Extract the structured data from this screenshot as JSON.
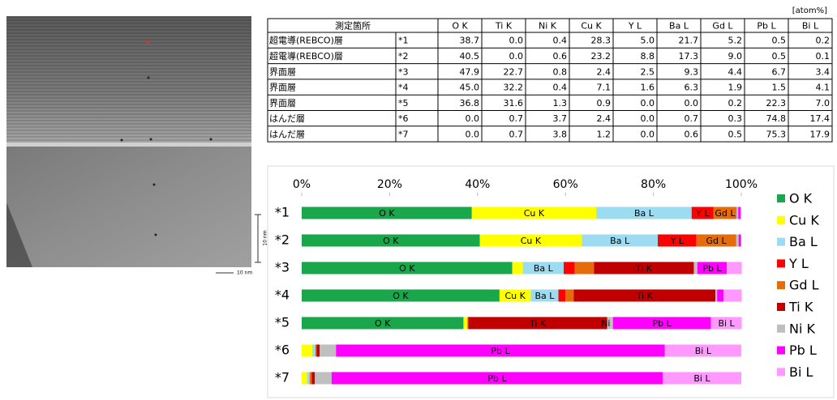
{
  "image": {
    "scale_labels": [
      "10 nm",
      "10 nm"
    ]
  },
  "table": {
    "unit": "[atom%]",
    "columns": [
      "測定箇所",
      "O K",
      "Ti K",
      "Ni K",
      "Cu K",
      "Y L",
      "Ba L",
      "Gd L",
      "Pb L",
      "Bi L"
    ],
    "rows": [
      [
        "超電導(REBCO)層",
        "*1",
        "38.7",
        "0.0",
        "0.4",
        "28.3",
        "5.0",
        "21.7",
        "5.2",
        "0.5",
        "0.2"
      ],
      [
        "超電導(REBCO)層",
        "*2",
        "40.5",
        "0.0",
        "0.6",
        "23.2",
        "8.8",
        "17.3",
        "9.0",
        "0.5",
        "0.1"
      ],
      [
        "界面層",
        "*3",
        "47.9",
        "22.7",
        "0.8",
        "2.4",
        "2.5",
        "9.3",
        "4.4",
        "6.7",
        "3.4"
      ],
      [
        "界面層",
        "*4",
        "45.0",
        "32.2",
        "0.4",
        "7.1",
        "1.6",
        "6.3",
        "1.9",
        "1.5",
        "4.1"
      ],
      [
        "界面層",
        "*5",
        "36.8",
        "31.6",
        "1.3",
        "0.9",
        "0.0",
        "0.0",
        "0.2",
        "22.3",
        "7.0"
      ],
      [
        "はんだ層",
        "*6",
        "0.0",
        "0.7",
        "3.7",
        "2.4",
        "0.0",
        "0.7",
        "0.3",
        "74.8",
        "17.4"
      ],
      [
        "はんだ層",
        "*7",
        "0.0",
        "0.7",
        "3.8",
        "1.2",
        "0.0",
        "0.6",
        "0.5",
        "75.3",
        "17.9"
      ]
    ]
  },
  "chart_data": {
    "type": "stacked-barh",
    "categories": [
      "*1",
      "*2",
      "*3",
      "*4",
      "*5",
      "*6",
      "*7"
    ],
    "xlim": [
      0,
      100
    ],
    "xticks": [
      {
        "value": 0,
        "label": "0%"
      },
      {
        "value": 20,
        "label": "20%"
      },
      {
        "value": 40,
        "label": "40%"
      },
      {
        "value": 60,
        "label": "60%"
      },
      {
        "value": 80,
        "label": "80%"
      },
      {
        "value": 100,
        "label": "100%"
      }
    ],
    "legend": "right",
    "series": [
      {
        "name": "O K",
        "color": "#1aa64a",
        "values": [
          38.7,
          40.5,
          47.9,
          45.0,
          36.8,
          0.0,
          0.0
        ]
      },
      {
        "name": "Cu K",
        "color": "#ffff00",
        "values": [
          28.3,
          23.2,
          2.4,
          7.1,
          0.9,
          2.4,
          1.2
        ]
      },
      {
        "name": "Ba L",
        "color": "#9ddcf0",
        "values": [
          21.7,
          17.3,
          9.3,
          6.3,
          0.0,
          0.7,
          0.6
        ]
      },
      {
        "name": "Y L",
        "color": "#ff0000",
        "values": [
          5.0,
          8.8,
          2.5,
          1.6,
          0.0,
          0.0,
          0.0
        ]
      },
      {
        "name": "Gd L",
        "color": "#e46c0a",
        "values": [
          5.2,
          9.0,
          4.4,
          1.9,
          0.2,
          0.3,
          0.5
        ]
      },
      {
        "name": "Ti K",
        "color": "#c00000",
        "values": [
          0.0,
          0.0,
          22.7,
          32.2,
          31.6,
          0.7,
          0.7
        ]
      },
      {
        "name": "Ni K",
        "color": "#bfbfbf",
        "values": [
          0.4,
          0.6,
          0.8,
          0.4,
          1.3,
          3.7,
          3.8
        ]
      },
      {
        "name": "Pb L",
        "color": "#ff00ff",
        "values": [
          0.5,
          0.5,
          6.7,
          1.5,
          22.3,
          74.8,
          75.3
        ]
      },
      {
        "name": "Bi L",
        "color": "#ff99ff",
        "values": [
          0.2,
          0.1,
          3.4,
          4.1,
          7.0,
          17.4,
          17.9
        ]
      }
    ]
  }
}
